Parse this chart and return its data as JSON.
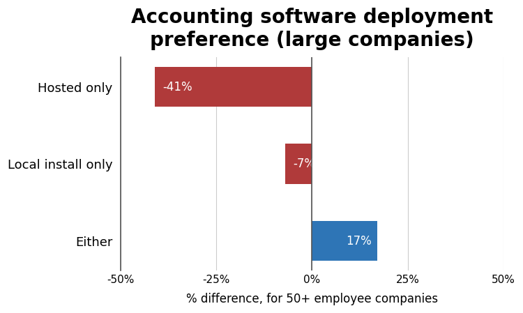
{
  "title": "Accounting software deployment\npreference (large companies)",
  "categories": [
    "Hosted only",
    "Local install only",
    "Either"
  ],
  "values": [
    -41,
    -7,
    17
  ],
  "bar_colors": [
    "#b03a3a",
    "#b03a3a",
    "#2e75b6"
  ],
  "bar_labels": [
    "-41%",
    "-7%",
    "17%"
  ],
  "xlabel": "% difference, for 50+ employee companies",
  "xlim": [
    -50,
    50
  ],
  "xticks": [
    -50,
    -25,
    0,
    25,
    50
  ],
  "xtick_labels": [
    "-50%",
    "-25%",
    "0%",
    "25%",
    "50%"
  ],
  "title_fontsize": 20,
  "label_fontsize": 12,
  "tick_fontsize": 11,
  "bar_label_fontsize": 12,
  "ytick_fontsize": 13,
  "background_color": "#ffffff",
  "grid_color": "#cccccc",
  "text_color": "#000000",
  "spine_color": "#555555"
}
